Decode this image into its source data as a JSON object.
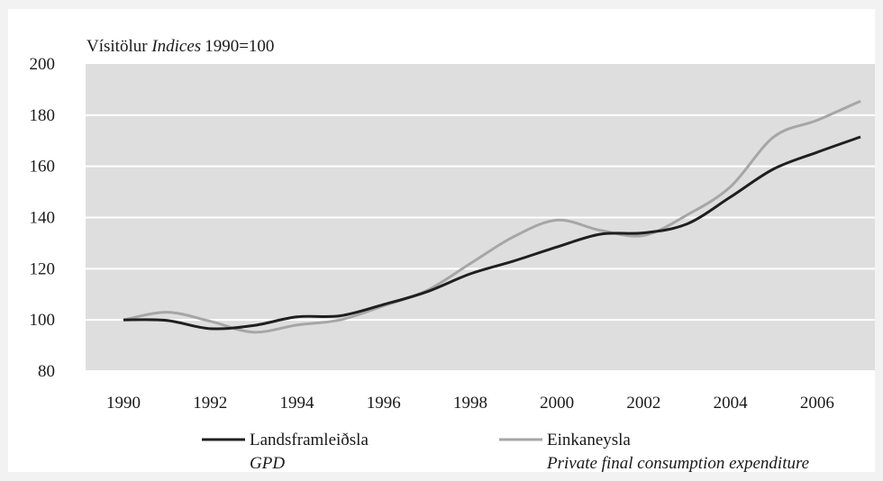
{
  "chart_data": {
    "type": "line",
    "ylabel_prefix": "Vísitölur",
    "ylabel_italic": "Indices",
    "ylabel_suffix": "1990=100",
    "ylim": [
      80,
      200
    ],
    "yticks": [
      80,
      100,
      120,
      140,
      160,
      180,
      200
    ],
    "xlim": [
      1990,
      2007
    ],
    "xticks": [
      "1990",
      "1992",
      "1994",
      "1996",
      "1998",
      "2000",
      "2002",
      "2004",
      "2006"
    ],
    "grid": true,
    "legend_position": "bottom",
    "plot_background": "#dedede",
    "x": [
      1990,
      1991,
      1992,
      1993,
      1994,
      1995,
      1996,
      1997,
      1998,
      1999,
      2000,
      2001,
      2002,
      2003,
      2004,
      2005,
      2006,
      2007
    ],
    "series": [
      {
        "name": "Landsframleiðsla",
        "name_en": "GPD",
        "color": "#1f1f1f",
        "values": [
          100,
          99.8,
          96.6,
          97.8,
          101.2,
          101.6,
          106,
          111,
          118,
          123,
          128.5,
          133.5,
          134,
          137.5,
          148,
          159,
          165.5,
          171.5
        ]
      },
      {
        "name": "Einkaneysla",
        "name_en": "Private final consumption expenditure",
        "color": "#a6a6a6",
        "values": [
          100,
          103,
          99.5,
          95.2,
          98,
          100,
          105.5,
          111.5,
          122,
          132.5,
          139,
          135,
          133,
          141,
          152,
          171.5,
          178,
          185.5
        ]
      }
    ]
  }
}
